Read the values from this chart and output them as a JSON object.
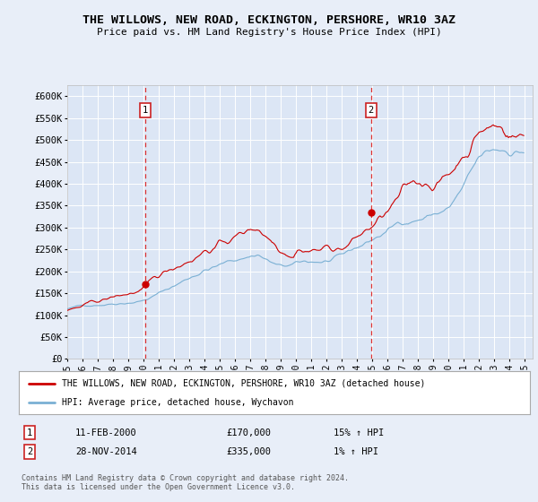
{
  "title": "THE WILLOWS, NEW ROAD, ECKINGTON, PERSHORE, WR10 3AZ",
  "subtitle": "Price paid vs. HM Land Registry's House Price Index (HPI)",
  "background_color": "#e8eef8",
  "plot_bg_color": "#dce6f5",
  "ylabel_ticks": [
    "£0",
    "£50K",
    "£100K",
    "£150K",
    "£200K",
    "£250K",
    "£300K",
    "£350K",
    "£400K",
    "£450K",
    "£500K",
    "£550K",
    "£600K"
  ],
  "ytick_values": [
    0,
    50000,
    100000,
    150000,
    200000,
    250000,
    300000,
    350000,
    400000,
    450000,
    500000,
    550000,
    600000
  ],
  "ylim": [
    0,
    625000
  ],
  "xlim_start": 1995.0,
  "xlim_end": 2025.5,
  "marker1_x": 2000.11,
  "marker1_y": 170000,
  "marker1_label": "1",
  "marker1_date": "11-FEB-2000",
  "marker1_price": "£170,000",
  "marker1_hpi": "15% ↑ HPI",
  "marker2_x": 2014.91,
  "marker2_y": 335000,
  "marker2_label": "2",
  "marker2_date": "28-NOV-2014",
  "marker2_price": "£335,000",
  "marker2_hpi": "1% ↑ HPI",
  "legend_line1": "THE WILLOWS, NEW ROAD, ECKINGTON, PERSHORE, WR10 3AZ (detached house)",
  "legend_line2": "HPI: Average price, detached house, Wychavon",
  "footnote": "Contains HM Land Registry data © Crown copyright and database right 2024.\nThis data is licensed under the Open Government Licence v3.0.",
  "red_color": "#cc0000",
  "blue_color": "#7ab0d4"
}
